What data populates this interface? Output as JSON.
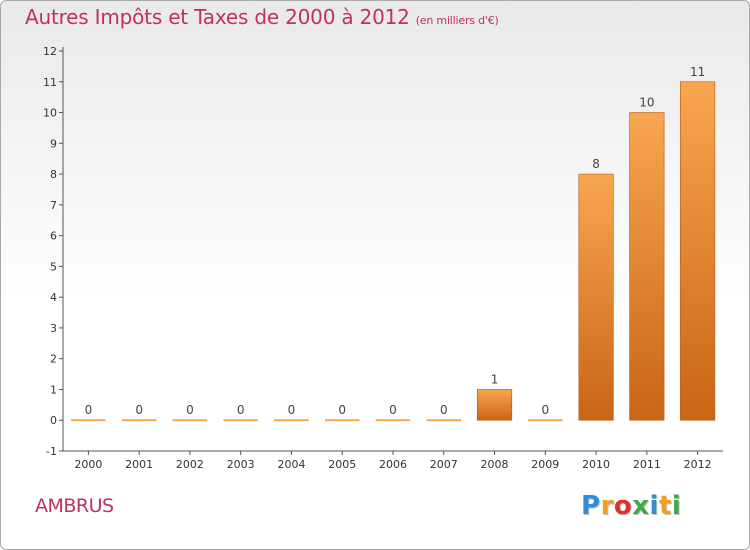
{
  "title": "Autres Impôts et Taxes de 2000 à 2012",
  "subtitle": "(en milliers d'€)",
  "place": "AMBRUS",
  "logo": {
    "text": "Proxiti",
    "letters": [
      {
        "char": "P",
        "color": "#2f8fd6"
      },
      {
        "char": "r",
        "color": "#f0a020"
      },
      {
        "char": "o",
        "color": "#e0302a"
      },
      {
        "char": "x",
        "color": "#3fa94a"
      },
      {
        "char": "i",
        "color": "#2f8fd6"
      },
      {
        "char": "t",
        "color": "#f0a020"
      },
      {
        "char": "i",
        "color": "#3fa94a"
      }
    ]
  },
  "colors": {
    "accent": "#c0325a",
    "bar_light": "#f8a650",
    "bar_dark": "#c96516",
    "axis": "#555555",
    "grid": "#cccccc"
  },
  "chart_data": {
    "type": "bar",
    "title": "Autres Impôts et Taxes de 2000 à 2012",
    "subtitle": "(en milliers d'€)",
    "categories": [
      "2000",
      "2001",
      "2002",
      "2003",
      "2004",
      "2005",
      "2006",
      "2007",
      "2008",
      "2009",
      "2010",
      "2011",
      "2012"
    ],
    "values": [
      0,
      0,
      0,
      0,
      0,
      0,
      0,
      0,
      1,
      0,
      8,
      10,
      11
    ],
    "data_labels": [
      "0",
      "0",
      "0",
      "0",
      "0",
      "0",
      "0",
      "0",
      "1",
      "0",
      "8",
      "10",
      "11"
    ],
    "y_ticks": [
      "-1",
      "0",
      "1",
      "2",
      "3",
      "4",
      "5",
      "6",
      "7",
      "8",
      "9",
      "10",
      "11",
      "12"
    ],
    "ylim": [
      -1,
      12
    ],
    "xlabel": "",
    "ylabel": "",
    "grid": false,
    "legend": "none"
  }
}
